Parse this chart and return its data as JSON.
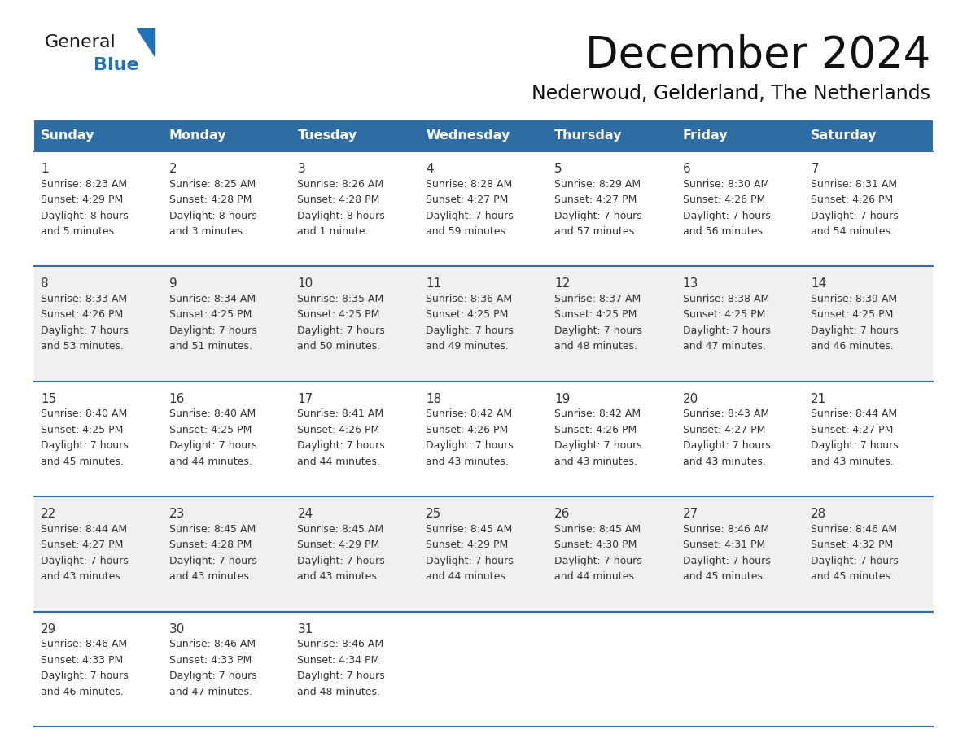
{
  "title": "December 2024",
  "subtitle": "Nederwoud, Gelderland, The Netherlands",
  "header_color": "#2E6DA4",
  "header_text_color": "#FFFFFF",
  "day_names": [
    "Sunday",
    "Monday",
    "Tuesday",
    "Wednesday",
    "Thursday",
    "Friday",
    "Saturday"
  ],
  "background_color": "#FFFFFF",
  "alt_row_color": "#F0F0F0",
  "cell_text_color": "#333333",
  "grid_color": "#2E6DA4",
  "days": [
    {
      "date": 1,
      "col": 0,
      "row": 0,
      "sunrise": "8:23 AM",
      "sunset": "4:29 PM",
      "daylight": "8 hours",
      "daylight2": "and 5 minutes."
    },
    {
      "date": 2,
      "col": 1,
      "row": 0,
      "sunrise": "8:25 AM",
      "sunset": "4:28 PM",
      "daylight": "8 hours",
      "daylight2": "and 3 minutes."
    },
    {
      "date": 3,
      "col": 2,
      "row": 0,
      "sunrise": "8:26 AM",
      "sunset": "4:28 PM",
      "daylight": "8 hours",
      "daylight2": "and 1 minute."
    },
    {
      "date": 4,
      "col": 3,
      "row": 0,
      "sunrise": "8:28 AM",
      "sunset": "4:27 PM",
      "daylight": "7 hours",
      "daylight2": "and 59 minutes."
    },
    {
      "date": 5,
      "col": 4,
      "row": 0,
      "sunrise": "8:29 AM",
      "sunset": "4:27 PM",
      "daylight": "7 hours",
      "daylight2": "and 57 minutes."
    },
    {
      "date": 6,
      "col": 5,
      "row": 0,
      "sunrise": "8:30 AM",
      "sunset": "4:26 PM",
      "daylight": "7 hours",
      "daylight2": "and 56 minutes."
    },
    {
      "date": 7,
      "col": 6,
      "row": 0,
      "sunrise": "8:31 AM",
      "sunset": "4:26 PM",
      "daylight": "7 hours",
      "daylight2": "and 54 minutes."
    },
    {
      "date": 8,
      "col": 0,
      "row": 1,
      "sunrise": "8:33 AM",
      "sunset": "4:26 PM",
      "daylight": "7 hours",
      "daylight2": "and 53 minutes."
    },
    {
      "date": 9,
      "col": 1,
      "row": 1,
      "sunrise": "8:34 AM",
      "sunset": "4:25 PM",
      "daylight": "7 hours",
      "daylight2": "and 51 minutes."
    },
    {
      "date": 10,
      "col": 2,
      "row": 1,
      "sunrise": "8:35 AM",
      "sunset": "4:25 PM",
      "daylight": "7 hours",
      "daylight2": "and 50 minutes."
    },
    {
      "date": 11,
      "col": 3,
      "row": 1,
      "sunrise": "8:36 AM",
      "sunset": "4:25 PM",
      "daylight": "7 hours",
      "daylight2": "and 49 minutes."
    },
    {
      "date": 12,
      "col": 4,
      "row": 1,
      "sunrise": "8:37 AM",
      "sunset": "4:25 PM",
      "daylight": "7 hours",
      "daylight2": "and 48 minutes."
    },
    {
      "date": 13,
      "col": 5,
      "row": 1,
      "sunrise": "8:38 AM",
      "sunset": "4:25 PM",
      "daylight": "7 hours",
      "daylight2": "and 47 minutes."
    },
    {
      "date": 14,
      "col": 6,
      "row": 1,
      "sunrise": "8:39 AM",
      "sunset": "4:25 PM",
      "daylight": "7 hours",
      "daylight2": "and 46 minutes."
    },
    {
      "date": 15,
      "col": 0,
      "row": 2,
      "sunrise": "8:40 AM",
      "sunset": "4:25 PM",
      "daylight": "7 hours",
      "daylight2": "and 45 minutes."
    },
    {
      "date": 16,
      "col": 1,
      "row": 2,
      "sunrise": "8:40 AM",
      "sunset": "4:25 PM",
      "daylight": "7 hours",
      "daylight2": "and 44 minutes."
    },
    {
      "date": 17,
      "col": 2,
      "row": 2,
      "sunrise": "8:41 AM",
      "sunset": "4:26 PM",
      "daylight": "7 hours",
      "daylight2": "and 44 minutes."
    },
    {
      "date": 18,
      "col": 3,
      "row": 2,
      "sunrise": "8:42 AM",
      "sunset": "4:26 PM",
      "daylight": "7 hours",
      "daylight2": "and 43 minutes."
    },
    {
      "date": 19,
      "col": 4,
      "row": 2,
      "sunrise": "8:42 AM",
      "sunset": "4:26 PM",
      "daylight": "7 hours",
      "daylight2": "and 43 minutes."
    },
    {
      "date": 20,
      "col": 5,
      "row": 2,
      "sunrise": "8:43 AM",
      "sunset": "4:27 PM",
      "daylight": "7 hours",
      "daylight2": "and 43 minutes."
    },
    {
      "date": 21,
      "col": 6,
      "row": 2,
      "sunrise": "8:44 AM",
      "sunset": "4:27 PM",
      "daylight": "7 hours",
      "daylight2": "and 43 minutes."
    },
    {
      "date": 22,
      "col": 0,
      "row": 3,
      "sunrise": "8:44 AM",
      "sunset": "4:27 PM",
      "daylight": "7 hours",
      "daylight2": "and 43 minutes."
    },
    {
      "date": 23,
      "col": 1,
      "row": 3,
      "sunrise": "8:45 AM",
      "sunset": "4:28 PM",
      "daylight": "7 hours",
      "daylight2": "and 43 minutes."
    },
    {
      "date": 24,
      "col": 2,
      "row": 3,
      "sunrise": "8:45 AM",
      "sunset": "4:29 PM",
      "daylight": "7 hours",
      "daylight2": "and 43 minutes."
    },
    {
      "date": 25,
      "col": 3,
      "row": 3,
      "sunrise": "8:45 AM",
      "sunset": "4:29 PM",
      "daylight": "7 hours",
      "daylight2": "and 44 minutes."
    },
    {
      "date": 26,
      "col": 4,
      "row": 3,
      "sunrise": "8:45 AM",
      "sunset": "4:30 PM",
      "daylight": "7 hours",
      "daylight2": "and 44 minutes."
    },
    {
      "date": 27,
      "col": 5,
      "row": 3,
      "sunrise": "8:46 AM",
      "sunset": "4:31 PM",
      "daylight": "7 hours",
      "daylight2": "and 45 minutes."
    },
    {
      "date": 28,
      "col": 6,
      "row": 3,
      "sunrise": "8:46 AM",
      "sunset": "4:32 PM",
      "daylight": "7 hours",
      "daylight2": "and 45 minutes."
    },
    {
      "date": 29,
      "col": 0,
      "row": 4,
      "sunrise": "8:46 AM",
      "sunset": "4:33 PM",
      "daylight": "7 hours",
      "daylight2": "and 46 minutes."
    },
    {
      "date": 30,
      "col": 1,
      "row": 4,
      "sunrise": "8:46 AM",
      "sunset": "4:33 PM",
      "daylight": "7 hours",
      "daylight2": "and 47 minutes."
    },
    {
      "date": 31,
      "col": 2,
      "row": 4,
      "sunrise": "8:46 AM",
      "sunset": "4:34 PM",
      "daylight": "7 hours",
      "daylight2": "and 48 minutes."
    }
  ],
  "logo_color_general": "#1a1a1a",
  "logo_color_blue": "#2272B8",
  "logo_triangle_color": "#2272B8",
  "title_fontsize": 38,
  "subtitle_fontsize": 17,
  "header_fontsize": 11.5,
  "date_fontsize": 11,
  "cell_fontsize": 9
}
